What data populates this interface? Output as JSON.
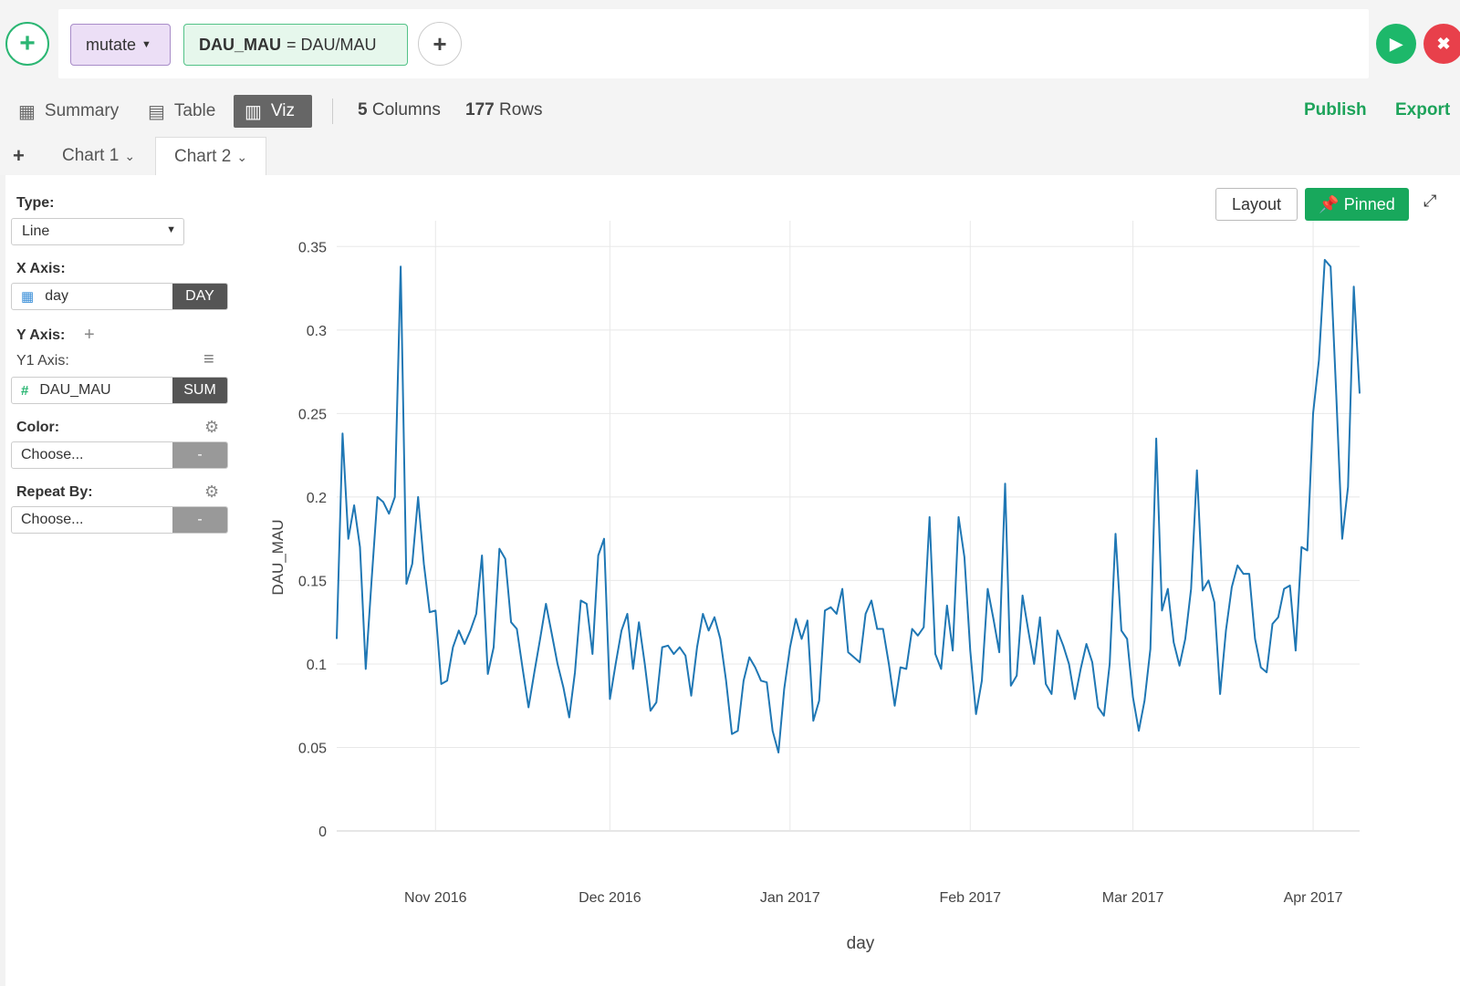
{
  "pipeline": {
    "command": "mutate",
    "expr_name": "DAU_MAU",
    "expr_body": "= DAU/MAU"
  },
  "views": {
    "summary": "Summary",
    "table": "Table",
    "viz": "Viz",
    "columns_num": "5",
    "columns_label": "Columns",
    "rows_num": "177",
    "rows_label": "Rows",
    "publish": "Publish",
    "export": "Export"
  },
  "charts": {
    "tab1": "Chart 1",
    "tab2": "Chart 2"
  },
  "config": {
    "type_label": "Type:",
    "type_value": "Line",
    "x_label": "X Axis:",
    "x_value": "day",
    "x_fn": "DAY",
    "y_label": "Y Axis:",
    "y1_label": "Y1 Axis:",
    "y_value": "DAU_MAU",
    "y_fn": "SUM",
    "color_label": "Color:",
    "color_value": "Choose...",
    "color_fn": "-",
    "repeat_label": "Repeat By:",
    "repeat_value": "Choose...",
    "repeat_fn": "-"
  },
  "toolbar": {
    "layout": "Layout",
    "pinned": "Pinned"
  },
  "colors": {
    "accent": "#18a85c",
    "line": "#1f77b4"
  },
  "chart_data": {
    "type": "line",
    "xlabel": "day",
    "ylabel": "DAU_MAU",
    "x_start": "2016-10-15",
    "x_end": "2017-04-09",
    "x_ticks": [
      {
        "date": "2016-11-01",
        "label": "Nov 2016"
      },
      {
        "date": "2016-12-01",
        "label": "Dec 2016"
      },
      {
        "date": "2017-01-01",
        "label": "Jan 2017"
      },
      {
        "date": "2017-02-01",
        "label": "Feb 2017"
      },
      {
        "date": "2017-03-01",
        "label": "Mar 2017"
      },
      {
        "date": "2017-04-01",
        "label": "Apr 2017"
      }
    ],
    "y_ticks": [
      {
        "v": 0,
        "label": "0"
      },
      {
        "v": 0.05,
        "label": "0.05"
      },
      {
        "v": 0.1,
        "label": "0.1"
      },
      {
        "v": 0.15,
        "label": "0.15"
      },
      {
        "v": 0.2,
        "label": "0.2"
      },
      {
        "v": 0.25,
        "label": "0.25"
      },
      {
        "v": 0.3,
        "label": "0.3"
      },
      {
        "v": 0.35,
        "label": "0.35"
      }
    ],
    "ylim": [
      0,
      0.36
    ],
    "values": [
      0.115,
      0.238,
      0.175,
      0.195,
      0.17,
      0.097,
      0.15,
      0.2,
      0.197,
      0.19,
      0.2,
      0.338,
      0.148,
      0.16,
      0.2,
      0.16,
      0.131,
      0.132,
      0.088,
      0.09,
      0.11,
      0.12,
      0.112,
      0.12,
      0.13,
      0.165,
      0.094,
      0.11,
      0.169,
      0.163,
      0.125,
      0.121,
      0.097,
      0.074,
      0.095,
      0.115,
      0.136,
      0.118,
      0.1,
      0.086,
      0.068,
      0.095,
      0.138,
      0.136,
      0.106,
      0.165,
      0.175,
      0.079,
      0.1,
      0.12,
      0.13,
      0.097,
      0.125,
      0.1,
      0.072,
      0.077,
      0.11,
      0.111,
      0.106,
      0.11,
      0.105,
      0.081,
      0.11,
      0.13,
      0.12,
      0.128,
      0.115,
      0.09,
      0.058,
      0.06,
      0.09,
      0.104,
      0.098,
      0.09,
      0.089,
      0.06,
      0.047,
      0.085,
      0.11,
      0.127,
      0.115,
      0.126,
      0.066,
      0.078,
      0.132,
      0.134,
      0.13,
      0.145,
      0.107,
      0.104,
      0.101,
      0.13,
      0.138,
      0.121,
      0.121,
      0.1,
      0.075,
      0.098,
      0.097,
      0.121,
      0.117,
      0.122,
      0.188,
      0.106,
      0.097,
      0.135,
      0.108,
      0.188,
      0.164,
      0.108,
      0.07,
      0.09,
      0.145,
      0.127,
      0.107,
      0.208,
      0.087,
      0.093,
      0.141,
      0.12,
      0.1,
      0.128,
      0.088,
      0.082,
      0.12,
      0.111,
      0.1,
      0.079,
      0.097,
      0.112,
      0.101,
      0.074,
      0.069,
      0.1,
      0.178,
      0.12,
      0.115,
      0.08,
      0.06,
      0.078,
      0.109,
      0.235,
      0.132,
      0.145,
      0.113,
      0.099,
      0.115,
      0.145,
      0.216,
      0.144,
      0.15,
      0.137,
      0.082,
      0.12,
      0.146,
      0.159,
      0.154,
      0.154,
      0.115,
      0.098,
      0.095,
      0.124,
      0.128,
      0.145,
      0.147,
      0.108,
      0.17,
      0.168,
      0.25,
      0.282,
      0.342,
      0.338,
      0.26,
      0.175,
      0.206,
      0.326,
      0.262
    ]
  }
}
